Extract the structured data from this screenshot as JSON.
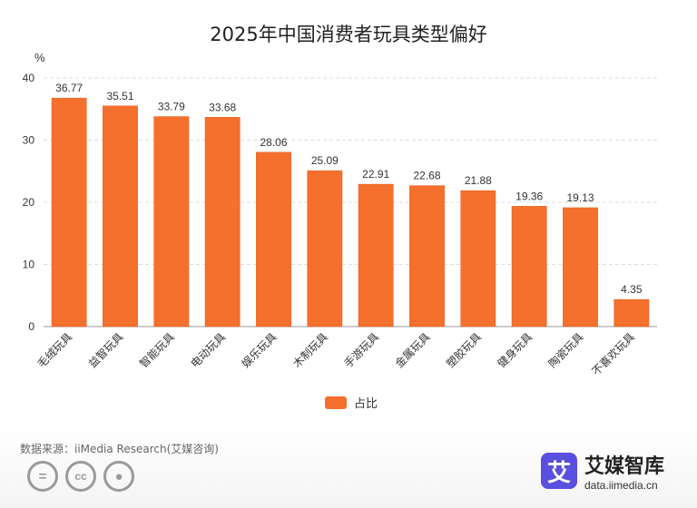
{
  "colors": {
    "bar": "#f4702c",
    "bar_edge": "#e55a1a",
    "grid": "#dddddd",
    "axis": "#999999"
  },
  "unit_label": "%",
  "legend": {
    "label": "占比"
  },
  "source": "数据来源：iiMedia Research(艾媒咨询)",
  "brand": {
    "logo_char": "艾",
    "name": "艾媒智库",
    "url": "data.iimedia.cn"
  },
  "cc_icons": [
    "equals-icon",
    "cc-icon",
    "person-icon"
  ],
  "chart_data": {
    "type": "bar",
    "title": "2025年中国消费者玩具类型偏好",
    "xlabel": "",
    "ylabel": "%",
    "ylim": [
      0,
      40
    ],
    "yticks": [
      0,
      10,
      20,
      30,
      40
    ],
    "grid": true,
    "legend_position": "bottom",
    "categories": [
      "毛绒玩具",
      "益智玩具",
      "智能玩具",
      "电动玩具",
      "娱乐玩具",
      "木制玩具",
      "手游玩具",
      "金属玩具",
      "塑胶玩具",
      "健身玩具",
      "陶瓷玩具",
      "不喜欢玩具"
    ],
    "series": [
      {
        "name": "占比",
        "values": [
          36.77,
          35.51,
          33.79,
          33.68,
          28.06,
          25.09,
          22.91,
          22.68,
          21.88,
          19.36,
          19.13,
          4.35
        ]
      }
    ]
  }
}
